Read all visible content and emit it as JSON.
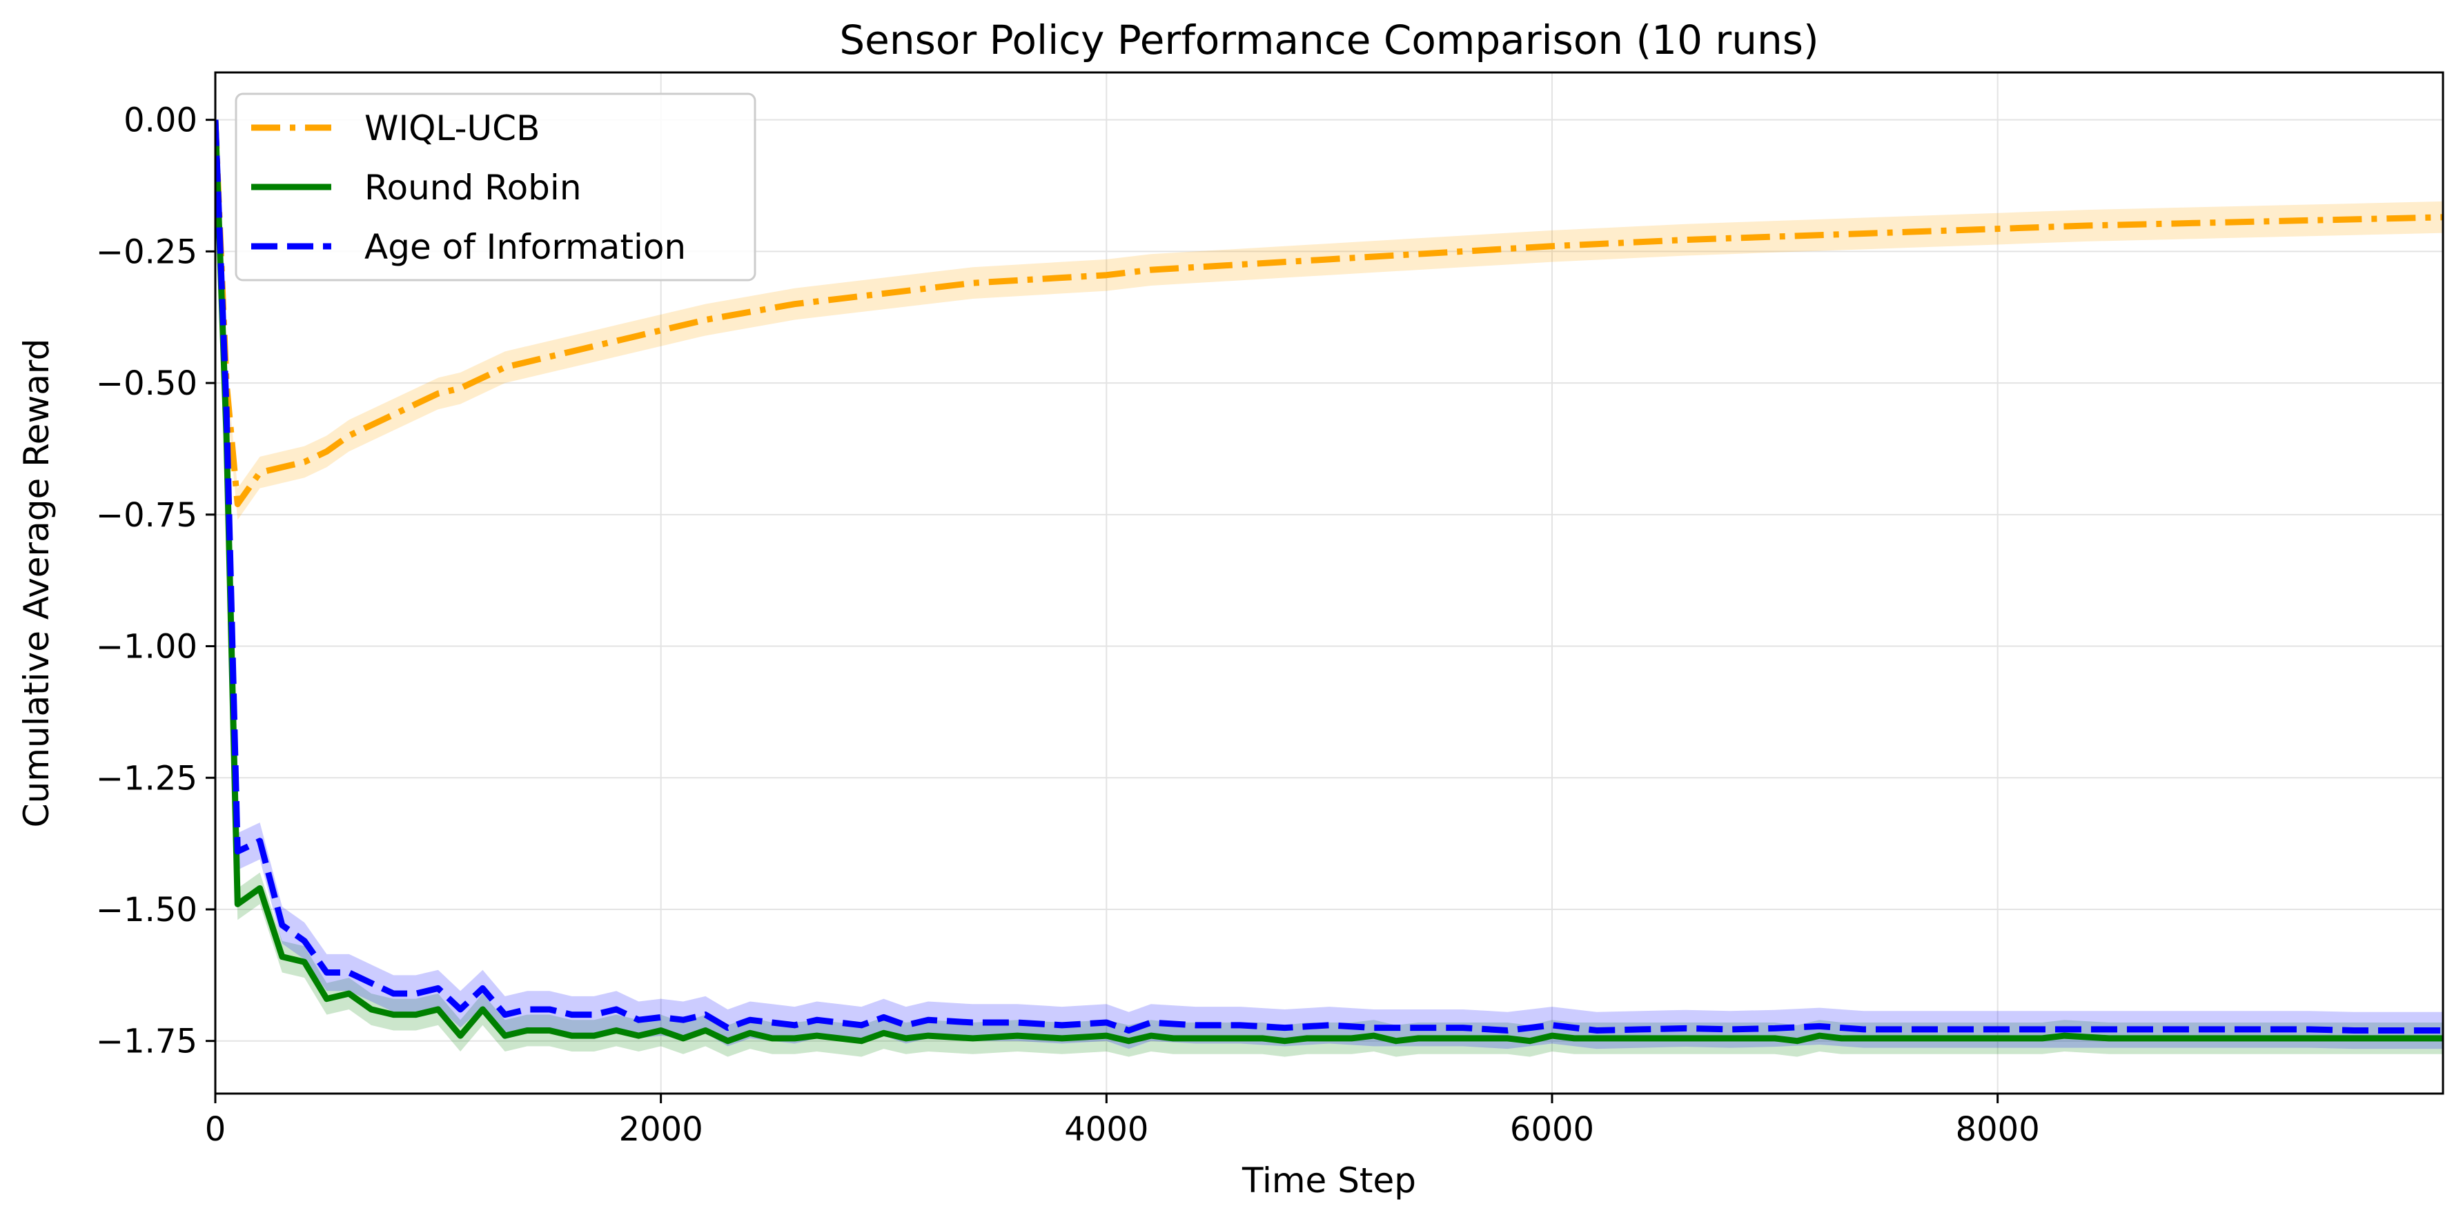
{
  "chart_data": {
    "type": "line",
    "title": "Sensor Policy Performance Comparison (10 runs)",
    "xlabel": "Time Step",
    "ylabel": "Cumulative Average Reward",
    "xlim": [
      0,
      9999
    ],
    "ylim": [
      -1.85,
      0.09
    ],
    "xticks": [
      0,
      2000,
      4000,
      6000,
      8000
    ],
    "xtick_labels": [
      "0",
      "2000",
      "4000",
      "6000",
      "8000"
    ],
    "yticks": [
      0.0,
      -0.25,
      -0.5,
      -0.75,
      -1.0,
      -1.25,
      -1.5,
      -1.75
    ],
    "ytick_labels": [
      "0.00",
      "−0.25",
      "−0.50",
      "−0.75",
      "−1.00",
      "−1.25",
      "−1.50",
      "−1.75"
    ],
    "grid": true,
    "legend_position": "top-left",
    "legend": [
      "WIQL-UCB",
      "Round Robin",
      "Age of Information"
    ],
    "series": [
      {
        "name": "WIQL-UCB",
        "color": "#FFA500",
        "linestyle": "dashdot",
        "band_halfwidth": 0.03,
        "x": [
          0,
          50,
          100,
          200,
          300,
          400,
          500,
          600,
          700,
          800,
          900,
          1000,
          1100,
          1200,
          1300,
          1400,
          1500,
          1600,
          1700,
          1800,
          1900,
          2000,
          2200,
          2400,
          2600,
          2800,
          3000,
          3200,
          3400,
          3600,
          3800,
          4000,
          4200,
          4400,
          4600,
          4800,
          5000,
          5200,
          5400,
          5600,
          5800,
          6000,
          6200,
          6400,
          6600,
          6800,
          7000,
          7200,
          7400,
          7600,
          7800,
          8000,
          8200,
          8400,
          8600,
          8800,
          9000,
          9200,
          9400,
          9600,
          9800,
          9999
        ],
        "y": [
          0.0,
          -0.5,
          -0.73,
          -0.67,
          -0.66,
          -0.65,
          -0.63,
          -0.6,
          -0.58,
          -0.56,
          -0.54,
          -0.52,
          -0.51,
          -0.49,
          -0.47,
          -0.46,
          -0.45,
          -0.44,
          -0.43,
          -0.42,
          -0.41,
          -0.4,
          -0.38,
          -0.365,
          -0.35,
          -0.34,
          -0.33,
          -0.32,
          -0.31,
          -0.305,
          -0.3,
          -0.295,
          -0.285,
          -0.28,
          -0.275,
          -0.27,
          -0.265,
          -0.26,
          -0.255,
          -0.25,
          -0.245,
          -0.24,
          -0.236,
          -0.232,
          -0.228,
          -0.225,
          -0.222,
          -0.219,
          -0.216,
          -0.213,
          -0.21,
          -0.207,
          -0.204,
          -0.201,
          -0.199,
          -0.197,
          -0.195,
          -0.193,
          -0.191,
          -0.189,
          -0.187,
          -0.185
        ]
      },
      {
        "name": "Round Robin",
        "color": "#008000",
        "linestyle": "solid",
        "band_halfwidth": 0.03,
        "x": [
          0,
          50,
          100,
          200,
          300,
          400,
          500,
          600,
          700,
          800,
          900,
          1000,
          1100,
          1200,
          1300,
          1400,
          1500,
          1600,
          1700,
          1800,
          1900,
          2000,
          2100,
          2200,
          2300,
          2400,
          2500,
          2600,
          2700,
          2800,
          2900,
          3000,
          3100,
          3200,
          3400,
          3600,
          3800,
          4000,
          4100,
          4200,
          4300,
          4500,
          4700,
          4800,
          4900,
          5100,
          5200,
          5300,
          5400,
          5600,
          5800,
          5900,
          6000,
          6100,
          6300,
          6500,
          6700,
          6900,
          7000,
          7100,
          7200,
          7300,
          7500,
          7700,
          7900,
          8000,
          8200,
          8300,
          8500,
          8700,
          8900,
          9000,
          9100,
          9300,
          9500,
          9700,
          9999
        ],
        "y": [
          0.0,
          -0.6,
          -1.49,
          -1.46,
          -1.59,
          -1.6,
          -1.67,
          -1.66,
          -1.69,
          -1.7,
          -1.7,
          -1.69,
          -1.74,
          -1.69,
          -1.74,
          -1.73,
          -1.73,
          -1.74,
          -1.74,
          -1.73,
          -1.74,
          -1.73,
          -1.745,
          -1.73,
          -1.75,
          -1.735,
          -1.745,
          -1.745,
          -1.74,
          -1.745,
          -1.75,
          -1.735,
          -1.745,
          -1.74,
          -1.745,
          -1.74,
          -1.745,
          -1.74,
          -1.75,
          -1.74,
          -1.745,
          -1.745,
          -1.745,
          -1.75,
          -1.745,
          -1.745,
          -1.74,
          -1.75,
          -1.745,
          -1.745,
          -1.745,
          -1.75,
          -1.74,
          -1.745,
          -1.745,
          -1.745,
          -1.745,
          -1.745,
          -1.745,
          -1.75,
          -1.74,
          -1.745,
          -1.745,
          -1.745,
          -1.745,
          -1.745,
          -1.745,
          -1.74,
          -1.745,
          -1.745,
          -1.745,
          -1.745,
          -1.745,
          -1.745,
          -1.745,
          -1.745,
          -1.745
        ]
      },
      {
        "name": "Age of Information",
        "color": "#0000FF",
        "linestyle": "dashed",
        "band_halfwidth": 0.035,
        "x": [
          0,
          50,
          100,
          200,
          300,
          400,
          500,
          600,
          700,
          800,
          900,
          1000,
          1100,
          1200,
          1300,
          1400,
          1500,
          1600,
          1700,
          1800,
          1900,
          2000,
          2100,
          2200,
          2300,
          2400,
          2500,
          2600,
          2700,
          2800,
          2900,
          3000,
          3100,
          3200,
          3400,
          3600,
          3800,
          4000,
          4100,
          4200,
          4400,
          4600,
          4800,
          5000,
          5200,
          5400,
          5600,
          5800,
          6000,
          6200,
          6400,
          6600,
          6800,
          7000,
          7200,
          7400,
          7600,
          7800,
          8000,
          8200,
          8400,
          8600,
          8800,
          9000,
          9200,
          9400,
          9600,
          9999
        ],
        "y": [
          0.0,
          -0.55,
          -1.39,
          -1.37,
          -1.53,
          -1.56,
          -1.62,
          -1.62,
          -1.64,
          -1.66,
          -1.66,
          -1.65,
          -1.69,
          -1.65,
          -1.7,
          -1.69,
          -1.69,
          -1.7,
          -1.7,
          -1.69,
          -1.71,
          -1.705,
          -1.71,
          -1.7,
          -1.725,
          -1.71,
          -1.715,
          -1.72,
          -1.71,
          -1.715,
          -1.72,
          -1.705,
          -1.72,
          -1.71,
          -1.715,
          -1.715,
          -1.72,
          -1.715,
          -1.73,
          -1.715,
          -1.72,
          -1.72,
          -1.725,
          -1.72,
          -1.725,
          -1.725,
          -1.725,
          -1.73,
          -1.72,
          -1.73,
          -1.728,
          -1.726,
          -1.728,
          -1.726,
          -1.722,
          -1.728,
          -1.728,
          -1.728,
          -1.728,
          -1.728,
          -1.728,
          -1.728,
          -1.728,
          -1.728,
          -1.728,
          -1.728,
          -1.73,
          -1.73
        ]
      }
    ]
  }
}
